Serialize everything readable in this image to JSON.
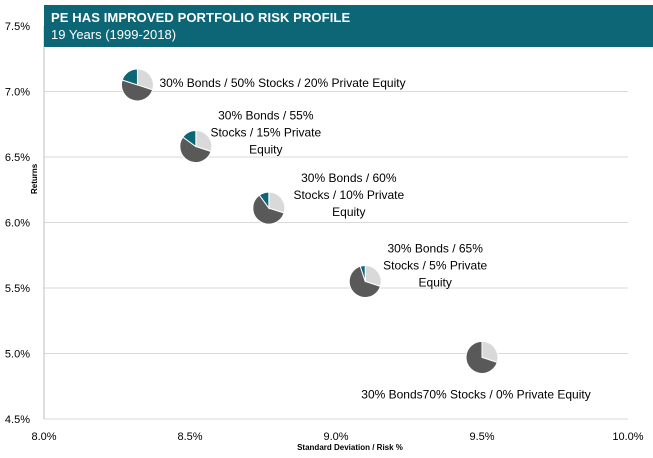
{
  "chart_data": {
    "type": "scatter",
    "title": "PE HAS IMPROVED PORTFOLIO RISK PROFILE",
    "subtitle": "19 Years (1999-2018)",
    "xlabel": "Standard Deviation / Risk %",
    "ylabel": "Returns",
    "xlim": [
      8.0,
      10.0
    ],
    "ylim": [
      4.5,
      7.5
    ],
    "x_ticks": [
      "8.0%",
      "8.5%",
      "9.0%",
      "9.5%",
      "10.0%"
    ],
    "y_ticks": [
      "4.5%",
      "5.0%",
      "5.5%",
      "6.0%",
      "6.5%",
      "7.0%",
      "7.5%"
    ],
    "x_tick_values": [
      8.0,
      8.5,
      9.0,
      9.5,
      10.0
    ],
    "y_tick_values": [
      4.5,
      5.0,
      5.5,
      6.0,
      6.5,
      7.0,
      7.5
    ],
    "grid": true,
    "points": [
      {
        "x": 8.32,
        "y": 7.05,
        "bonds": 30,
        "stocks": 50,
        "private_equity": 20,
        "label_lines": [
          "30% Bonds / 50% Stocks / 20% Private Equity"
        ]
      },
      {
        "x": 8.52,
        "y": 6.58,
        "bonds": 30,
        "stocks": 55,
        "private_equity": 15,
        "label_lines": [
          "30% Bonds / 55%",
          "Stocks / 15% Private",
          "Equity"
        ]
      },
      {
        "x": 8.77,
        "y": 6.11,
        "bonds": 30,
        "stocks": 60,
        "private_equity": 10,
        "label_lines": [
          "30% Bonds / 60%",
          "Stocks / 10% Private",
          "Equity"
        ]
      },
      {
        "x": 9.1,
        "y": 5.55,
        "bonds": 30,
        "stocks": 65,
        "private_equity": 5,
        "label_lines": [
          "30% Bonds / 65%",
          "Stocks / 5% Private",
          "Equity"
        ]
      },
      {
        "x": 9.5,
        "y": 4.97,
        "bonds": 30,
        "stocks": 70,
        "private_equity": 0,
        "label_lines": [
          "30% Bonds70% Stocks / 0% Private Equity"
        ]
      }
    ],
    "colors": {
      "bonds": "#d9d9d9",
      "stocks": "#595959",
      "private_equity": "#0d6675",
      "grid": "#d9d9d9",
      "axis": "#bfbfbf",
      "banner": "#0d6675"
    }
  }
}
